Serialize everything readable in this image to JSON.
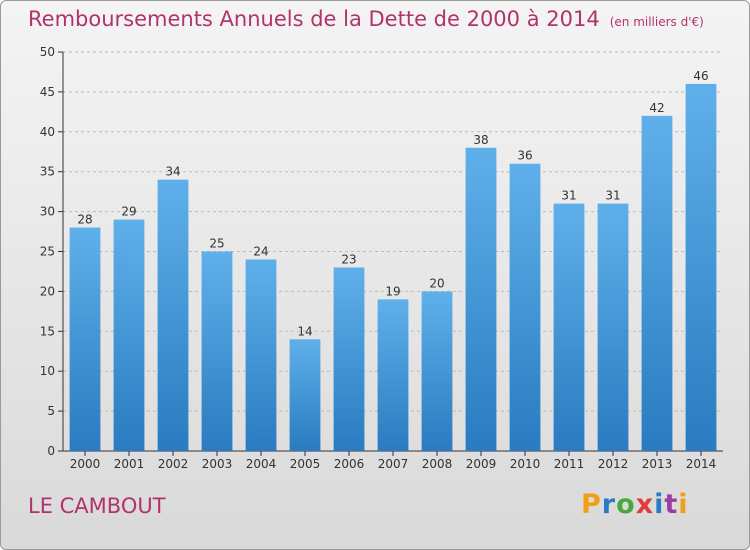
{
  "header": {
    "title": "Remboursements Annuels de la Dette de 2000 à 2014",
    "unit_note": "(en milliers d'€)"
  },
  "footer": {
    "commune": "LE CAMBOUT",
    "logo_text": "Proxiti",
    "logo_letter_colors": [
      "#f0a015",
      "#2a7bc4",
      "#4aa83c",
      "#e23a3a",
      "#2a7bc4",
      "#9b3fa5",
      "#f0a015"
    ]
  },
  "colors": {
    "title": "#b2336c",
    "bar_top": "#5fb0ea",
    "bar_bottom": "#2a7bc0",
    "axis": "#333333",
    "grid": "#bbbbbb"
  },
  "chart_data": {
    "type": "bar",
    "title": "Remboursements Annuels de la Dette de 2000 à 2014",
    "xlabel": "",
    "ylabel": "",
    "categories": [
      "2000",
      "2001",
      "2002",
      "2003",
      "2004",
      "2005",
      "2006",
      "2007",
      "2008",
      "2009",
      "2010",
      "2011",
      "2012",
      "2013",
      "2014"
    ],
    "values": [
      28,
      29,
      34,
      25,
      24,
      14,
      23,
      19,
      20,
      38,
      36,
      31,
      31,
      42,
      46
    ],
    "ylim": [
      0,
      50
    ],
    "yticks": [
      0,
      5,
      10,
      15,
      20,
      25,
      30,
      35,
      40,
      45,
      50
    ],
    "grid": true,
    "data_labels": true
  }
}
